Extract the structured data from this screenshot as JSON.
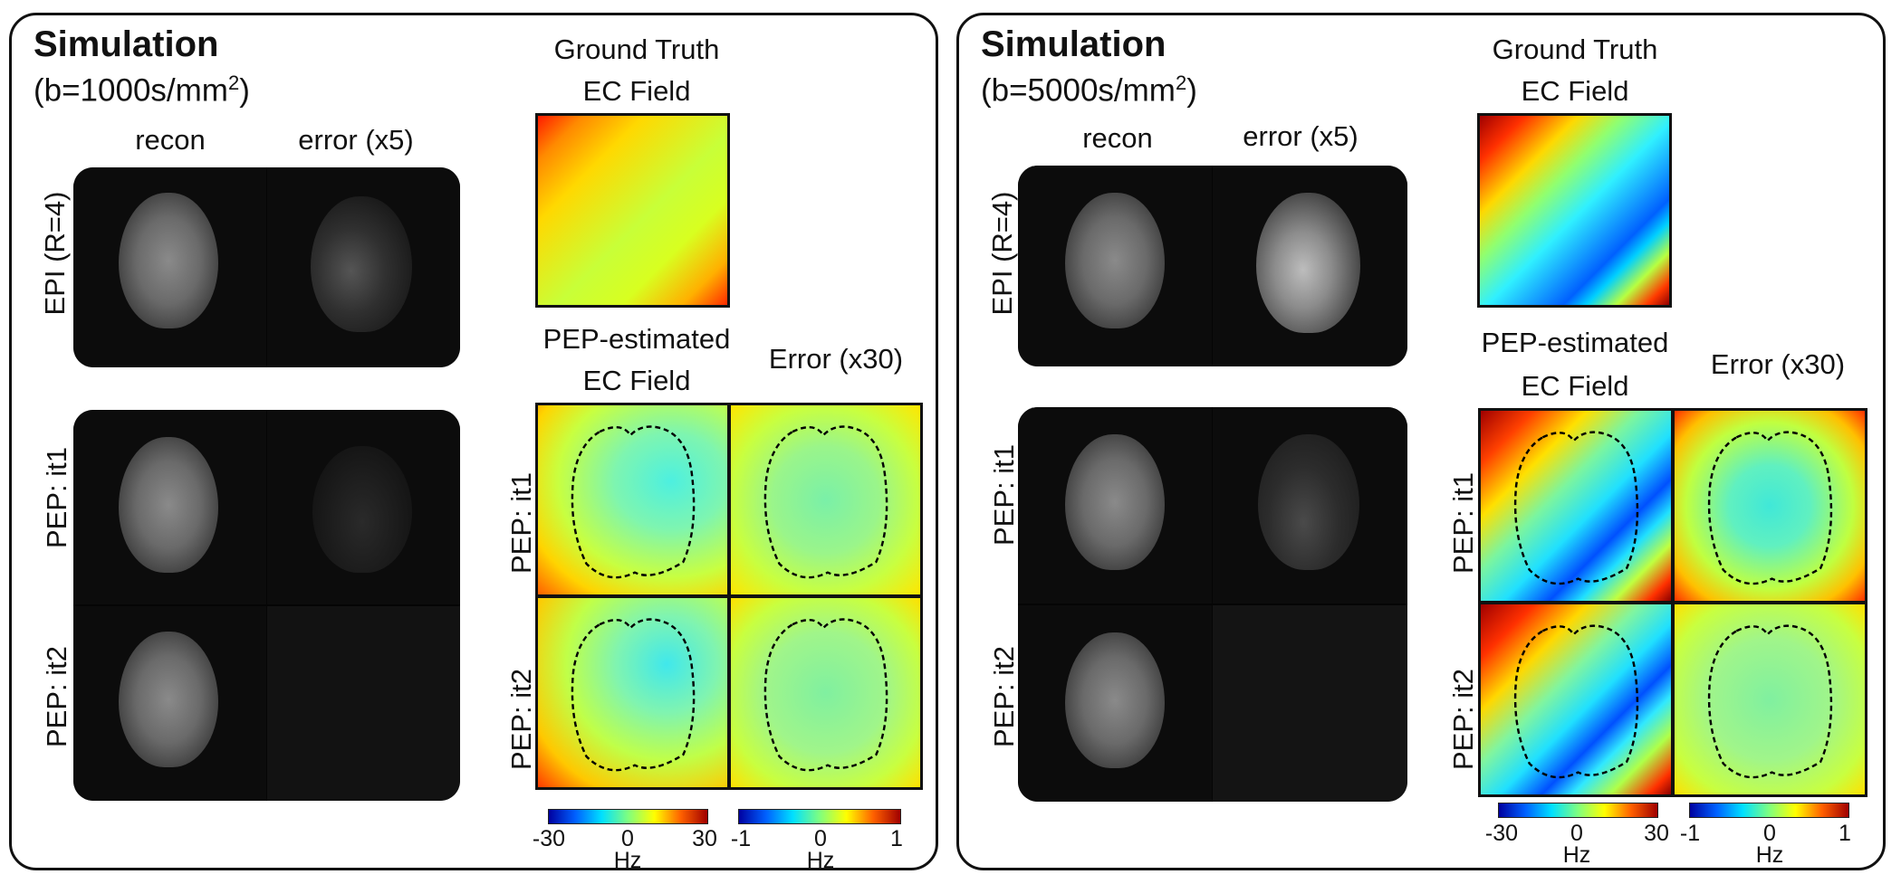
{
  "panels": [
    {
      "title": "Simulation",
      "b_value_prefix": "(b=1000s/mm",
      "b_value_sup": "2",
      "b_value_suffix": ")",
      "col_recon": "recon",
      "col_error": "error (x5)",
      "row_epi": "EPI (R=4)",
      "row_pep1": "PEP: it1",
      "row_pep2": "PEP: it2",
      "gt_title_1": "Ground Truth",
      "gt_title_2": "EC Field",
      "pep_title_1": "PEP-estimated",
      "pep_title_2": "EC Field",
      "err_title": "Error (x30)",
      "field_row1": "PEP: it1",
      "field_row2": "PEP: it2",
      "cbar1_min": "-30",
      "cbar1_mid": "0",
      "cbar1_max": "30",
      "cbar1_unit": "Hz",
      "cbar2_min": "-1",
      "cbar2_mid": "0",
      "cbar2_max": "1",
      "cbar2_unit": "Hz"
    },
    {
      "title": "Simulation",
      "b_value_prefix": "(b=5000s/mm",
      "b_value_sup": "2",
      "b_value_suffix": ")",
      "col_recon": "recon",
      "col_error": "error (x5)",
      "row_epi": "EPI (R=4)",
      "row_pep1": "PEP: it1",
      "row_pep2": "PEP: it2",
      "gt_title_1": "Ground Truth",
      "gt_title_2": "EC Field",
      "pep_title_1": "PEP-estimated",
      "pep_title_2": "EC Field",
      "err_title": "Error (x30)",
      "field_row1": "PEP: it1",
      "field_row2": "PEP: it2",
      "cbar1_min": "-30",
      "cbar1_mid": "0",
      "cbar1_max": "30",
      "cbar1_unit": "Hz",
      "cbar2_min": "-1",
      "cbar2_mid": "0",
      "cbar2_max": "1",
      "cbar2_unit": "Hz"
    }
  ],
  "colors": {
    "colormap": "jet",
    "border": "#111111"
  }
}
